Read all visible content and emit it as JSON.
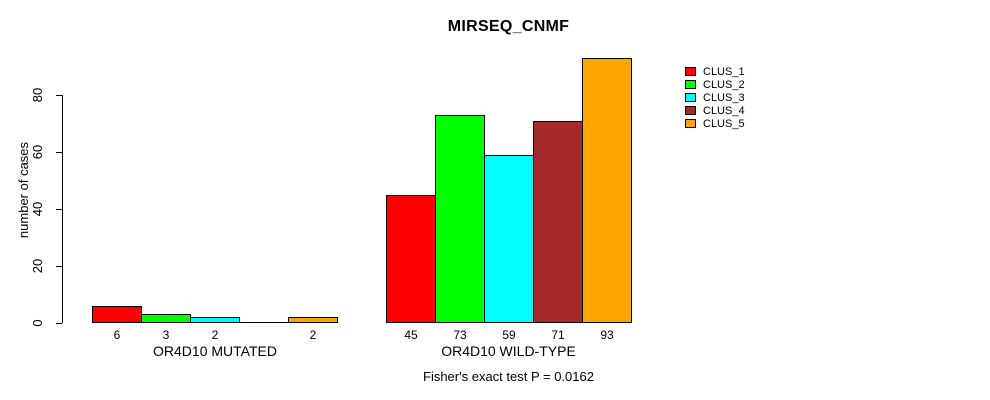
{
  "title": "MIRSEQ_CNMF",
  "caption": "Fisher's exact test P = 0.0162",
  "chart_data": {
    "type": "bar",
    "title": "MIRSEQ_CNMF",
    "xlabel": "",
    "ylabel": "number of cases",
    "ylim": [
      0,
      93
    ],
    "yticks": [
      0,
      20,
      40,
      60,
      80
    ],
    "grid": false,
    "legend_position": "right-top",
    "legend_entries": [
      "CLUS_1",
      "CLUS_2",
      "CLUS_3",
      "CLUS_4",
      "CLUS_5"
    ],
    "categories": [
      "OR4D10 MUTATED",
      "OR4D10 WILD-TYPE"
    ],
    "series": [
      {
        "name": "CLUS_1",
        "color": "#ff0000",
        "values": [
          6,
          45
        ]
      },
      {
        "name": "CLUS_2",
        "color": "#00ff00",
        "values": [
          3,
          73
        ]
      },
      {
        "name": "CLUS_3",
        "color": "#00ffff",
        "values": [
          2,
          59
        ]
      },
      {
        "name": "CLUS_4",
        "color": "#a52a2a",
        "values": [
          0,
          71
        ]
      },
      {
        "name": "CLUS_5",
        "color": "#ffa500",
        "values": [
          2,
          93
        ]
      }
    ],
    "bar_border_color": "#000000",
    "value_labels_shown": true,
    "zero_value_label_hidden": true
  }
}
